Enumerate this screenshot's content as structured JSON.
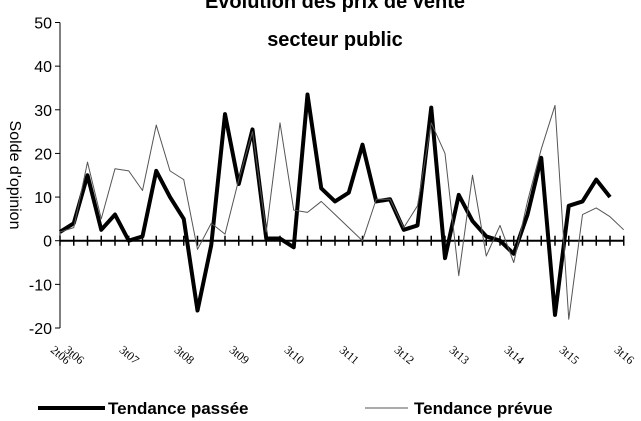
{
  "chart_data": {
    "type": "line",
    "title": [
      "Évolution des prix de vente",
      "secteur public"
    ],
    "y_label": "Solde d'opinion",
    "categories": [
      "2t06",
      "3t06",
      null,
      null,
      null,
      "3t07",
      null,
      null,
      null,
      "3t08",
      null,
      null,
      null,
      "3t09",
      null,
      null,
      null,
      "3t10",
      null,
      null,
      null,
      "3t11",
      null,
      null,
      null,
      "3t12",
      null,
      null,
      null,
      "3t13",
      null,
      null,
      null,
      "3t14",
      null,
      null,
      null,
      "3t15",
      null,
      null,
      null,
      "3t16"
    ],
    "series": [
      {
        "name": "Tendance passée",
        "color": "#000000",
        "width": 4,
        "values": [
          2,
          4,
          15,
          2.5,
          6,
          0,
          1,
          16,
          10,
          5,
          -16,
          -1,
          29,
          13,
          25.5,
          0.5,
          0.5,
          -1.5,
          33.5,
          12,
          9,
          11,
          22,
          9,
          9.5,
          2.5,
          3.5,
          30.5,
          -4,
          10.5,
          4.5,
          1,
          0,
          -3,
          6,
          19,
          -17,
          8,
          9,
          14,
          10,
          null
        ]
      },
      {
        "name": "Tendance prévue",
        "color": "#555555",
        "width": 1,
        "values": [
          2,
          3,
          18,
          5,
          16.5,
          16,
          11.5,
          26.5,
          16,
          14,
          -2,
          4,
          1.5,
          14,
          25,
          2,
          27,
          7,
          6.5,
          9,
          6,
          3,
          0,
          9.5,
          9.5,
          3,
          8,
          27,
          20,
          -8,
          15,
          -3.5,
          3.5,
          -5,
          9,
          21,
          31,
          -18,
          6,
          7.5,
          5.5,
          2.5
        ]
      }
    ],
    "ylim": [
      -20,
      50
    ],
    "yticks": [
      -20,
      -10,
      0,
      10,
      20,
      30,
      40,
      50
    ],
    "grid": false
  }
}
